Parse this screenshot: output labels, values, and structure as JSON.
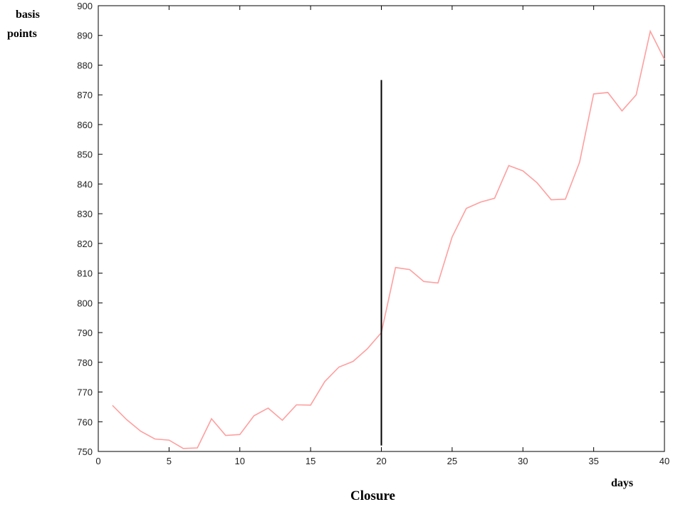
{
  "chart_data": {
    "type": "line",
    "title": "",
    "caption": "Closure",
    "xlabel": "days",
    "ylabel": [
      "basis",
      "points"
    ],
    "xlim": [
      0,
      40
    ],
    "ylim": [
      750,
      900
    ],
    "x_ticks": [
      0,
      5,
      10,
      15,
      20,
      25,
      30,
      35,
      40
    ],
    "y_ticks": [
      750,
      760,
      770,
      780,
      790,
      800,
      810,
      820,
      830,
      840,
      850,
      860,
      870,
      880,
      890,
      900
    ],
    "grid": false,
    "series": [
      {
        "color": "#ff9f9f",
        "x": [
          1,
          2,
          3,
          4,
          5,
          6,
          7,
          8,
          9,
          10,
          11,
          12,
          13,
          14,
          15,
          16,
          17,
          18,
          19,
          20,
          21,
          22,
          23,
          24,
          25,
          26,
          27,
          28,
          29,
          30,
          31,
          32,
          33,
          34,
          35,
          36,
          37,
          38,
          39,
          40
        ],
        "y": [
          765.5,
          760.7,
          756.8,
          754.2,
          753.8,
          751.0,
          751.2,
          761.0,
          755.4,
          755.7,
          762.0,
          764.6,
          760.5,
          765.7,
          765.6,
          773.5,
          778.4,
          780.3,
          784.5,
          790.0,
          811.9,
          811.2,
          807.2,
          806.7,
          822.2,
          831.8,
          833.9,
          835.2,
          846.2,
          844.4,
          840.4,
          834.7,
          834.9,
          847.3,
          870.3,
          870.8,
          864.6,
          870.0,
          891.4,
          881.9
        ]
      }
    ],
    "annotations": [
      {
        "type": "vertical-line",
        "x": 20,
        "y_range": [
          752,
          875
        ],
        "color": "#000000"
      }
    ]
  }
}
